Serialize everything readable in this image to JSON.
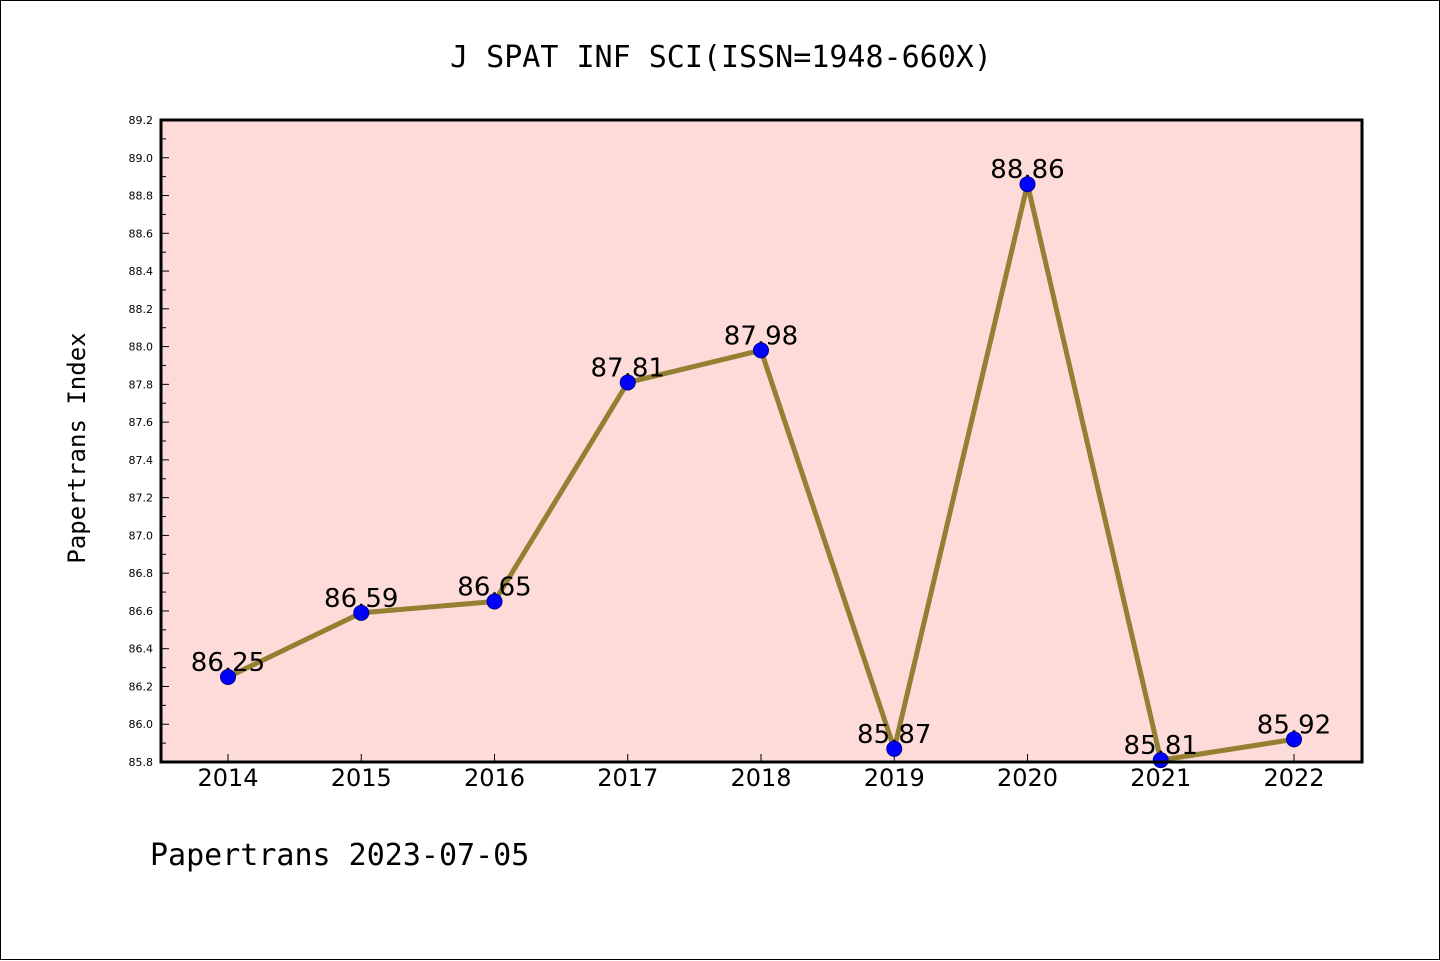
{
  "chart_data": {
    "type": "line",
    "title": "J SPAT INF SCI(ISSN=1948-660X)",
    "xlabel": "",
    "ylabel": "Papertrans Index",
    "categories": [
      "2014",
      "2015",
      "2016",
      "2017",
      "2018",
      "2019",
      "2020",
      "2021",
      "2022"
    ],
    "series": [
      {
        "values": [
          86.25,
          86.59,
          86.65,
          87.81,
          87.98,
          85.87,
          88.86,
          85.81,
          85.92
        ],
        "data_labels": [
          "86.25",
          "86.59",
          "86.65",
          "87.81",
          "87.98",
          "85.87",
          "88.86",
          "85.81",
          "85.92"
        ]
      }
    ],
    "ylim": [
      85.8,
      89.2
    ],
    "yticks": [
      "85.8",
      "86.0",
      "86.2",
      "86.4",
      "86.6",
      "86.8",
      "87.0",
      "87.2",
      "87.4",
      "87.6",
      "87.8",
      "88.0",
      "88.2",
      "88.4",
      "88.6",
      "88.8",
      "89.0",
      "89.2"
    ],
    "grid": false,
    "legend": "none",
    "colors": {
      "plot_background": "#fddbd8",
      "line": "#948033",
      "marker_fill": "#0000ff",
      "marker_edge": "#00008b",
      "axis": "#000000"
    },
    "footer": "Papertrans 2023-07-05"
  }
}
